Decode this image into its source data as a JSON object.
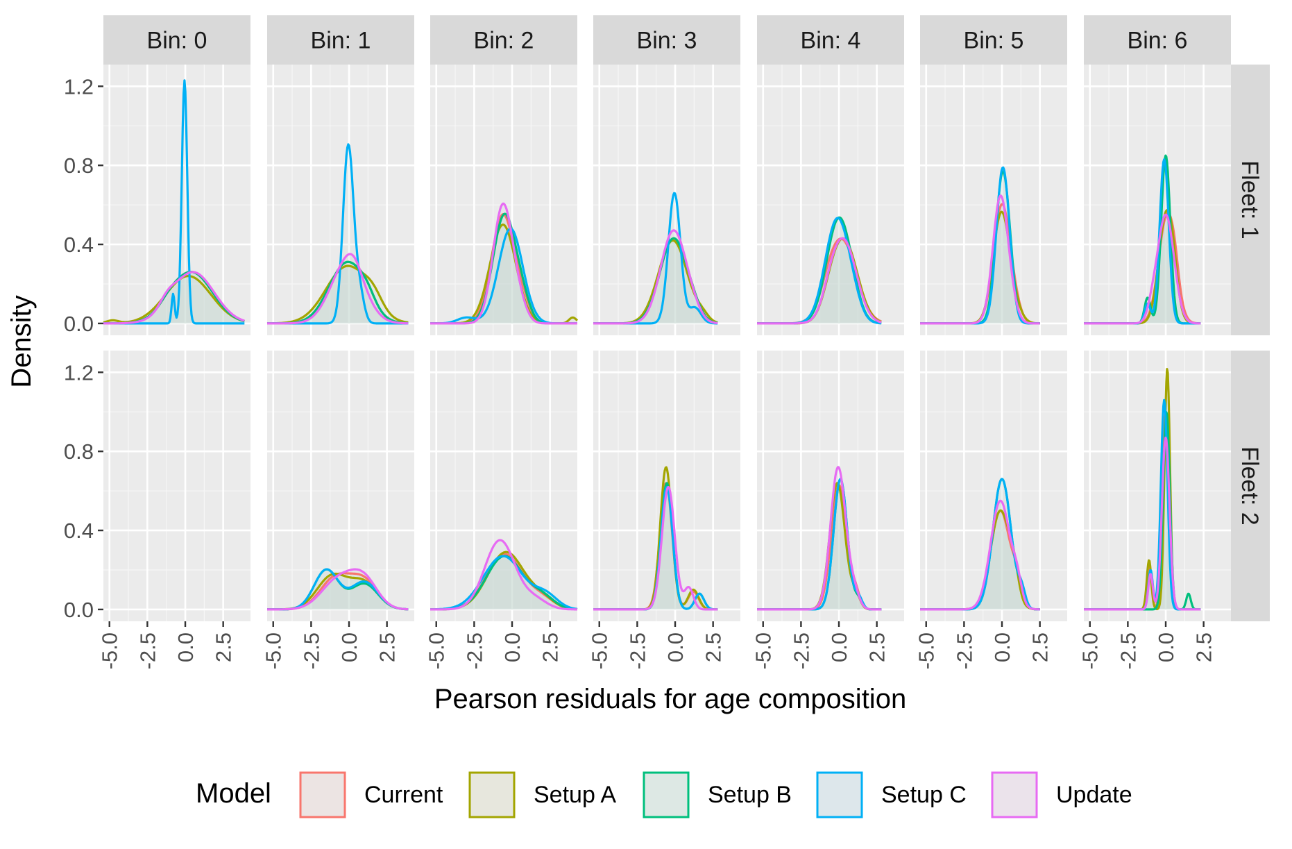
{
  "chart_data": {
    "type": "area",
    "title": "",
    "xlabel": "Pearson residuals for age composition",
    "ylabel": "Density",
    "x_ticks": [
      "-5.0",
      "-2.5",
      "0.0",
      "2.5"
    ],
    "x_tick_values": [
      -5,
      -2.5,
      0,
      2.5
    ],
    "y_ticks": [
      "0.0",
      "0.4",
      "0.8",
      "1.2"
    ],
    "y_tick_values": [
      0,
      0.4,
      0.8,
      1.2
    ],
    "xlim": [
      -5.4,
      4.3
    ],
    "ylim": [
      -0.06,
      1.31
    ],
    "grid": true,
    "legend_position": "bottom",
    "columns": [
      "Bin: 0",
      "Bin: 1",
      "Bin: 2",
      "Bin: 3",
      "Bin: 4",
      "Bin: 5",
      "Bin: 6"
    ],
    "rows": [
      "Fleet: 1",
      "Fleet: 2"
    ],
    "legend": {
      "title": "Model",
      "items": [
        {
          "label": "Current",
          "color": "#F8766D"
        },
        {
          "label": "Setup A",
          "color": "#A3A500"
        },
        {
          "label": "Setup B",
          "color": "#00BF7D"
        },
        {
          "label": "Setup C",
          "color": "#00B0F6"
        },
        {
          "label": "Update",
          "color": "#E76BF3"
        }
      ]
    },
    "series_order": [
      "Current",
      "Setup A",
      "Setup B",
      "Setup C",
      "Update"
    ],
    "panels": [
      {
        "col": 0,
        "row": 0,
        "empty": false,
        "range": [
          -5.4,
          3.9
        ],
        "curves": [
          {
            "c": 0.4,
            "s": 1.4,
            "a": 0.26,
            "c2": -1.1,
            "s2": 0.6,
            "a2": 0.02
          },
          {
            "c": 0.2,
            "s": 1.5,
            "a": 0.24,
            "c2": -4.8,
            "s2": 0.4,
            "a2": 0.015
          },
          {
            "c": 0.4,
            "s": 1.4,
            "a": 0.26,
            "c2": -1.1,
            "s2": 0.6,
            "a2": 0.02
          },
          {
            "c": -0.05,
            "s": 0.18,
            "a": 1.23,
            "c2": -0.8,
            "s2": 0.1,
            "a2": 0.15
          },
          {
            "c": 0.5,
            "s": 1.4,
            "a": 0.26,
            "c2": -1.2,
            "s2": 0.5,
            "a2": 0.04
          }
        ]
      },
      {
        "col": 1,
        "row": 0,
        "empty": false,
        "range": [
          -5.4,
          3.9
        ],
        "curves": [
          {
            "c": -0.1,
            "s": 1.2,
            "a": 0.31,
            "c2": 1.2,
            "s2": 0.5,
            "a2": 0.04
          },
          {
            "c": -0.1,
            "s": 1.4,
            "a": 0.29,
            "c2": 1.6,
            "s2": 0.6,
            "a2": 0.06
          },
          {
            "c": -0.1,
            "s": 1.2,
            "a": 0.31,
            "c2": 1.2,
            "s2": 0.5,
            "a2": 0.04
          },
          {
            "c": -0.05,
            "s": 0.35,
            "a": 0.9,
            "c2": 0.7,
            "s2": 0.3,
            "a2": 0.15
          },
          {
            "c": -0.1,
            "s": 1.1,
            "a": 0.31,
            "c2": 0.3,
            "s2": 0.5,
            "a2": 0.05
          }
        ]
      },
      {
        "col": 2,
        "row": 0,
        "empty": false,
        "range": [
          -5.4,
          4.3
        ],
        "curves": [
          {
            "c": -0.6,
            "s": 0.75,
            "a": 0.55,
            "c2": 0.7,
            "s2": 0.5,
            "a2": 0.08
          },
          {
            "c": -0.6,
            "s": 0.85,
            "a": 0.5,
            "c2": 4.0,
            "s2": 0.25,
            "a2": 0.03
          },
          {
            "c": -0.5,
            "s": 0.75,
            "a": 0.55,
            "c2": 0.7,
            "s2": 0.5,
            "a2": 0.08
          },
          {
            "c": -0.1,
            "s": 0.8,
            "a": 0.48,
            "c2": -3.0,
            "s2": 0.6,
            "a2": 0.03
          },
          {
            "c": -0.6,
            "s": 0.65,
            "a": 0.6,
            "c2": 0.5,
            "s2": 0.5,
            "a2": 0.07
          }
        ]
      },
      {
        "col": 3,
        "row": 0,
        "empty": false,
        "range": [
          -5.4,
          2.8
        ],
        "curves": [
          {
            "c": -0.1,
            "s": 0.9,
            "a": 0.43,
            "c2": 1.2,
            "s2": 0.5,
            "a2": 0.03
          },
          {
            "c": -0.15,
            "s": 0.95,
            "a": 0.42,
            "c2": 1.8,
            "s2": 0.4,
            "a2": 0.03
          },
          {
            "c": -0.1,
            "s": 0.9,
            "a": 0.43,
            "c2": 1.2,
            "s2": 0.5,
            "a2": 0.03
          },
          {
            "c": -0.05,
            "s": 0.4,
            "a": 0.66,
            "c2": 1.3,
            "s2": 0.4,
            "a2": 0.08
          },
          {
            "c": -0.1,
            "s": 0.85,
            "a": 0.47,
            "c2": 1.2,
            "s2": 0.5,
            "a2": 0.03
          }
        ]
      },
      {
        "col": 4,
        "row": 0,
        "empty": false,
        "range": [
          -5.4,
          2.8
        ],
        "curves": [
          {
            "c": 0.2,
            "s": 0.95,
            "a": 0.42,
            "c2": -0.7,
            "s2": 0.5,
            "a2": 0.04
          },
          {
            "c": 0.4,
            "s": 0.85,
            "a": 0.4,
            "c2": -0.5,
            "s2": 0.6,
            "a2": 0.08
          },
          {
            "c": 0.0,
            "s": 0.8,
            "a": 0.53,
            "c2": 0.9,
            "s2": 0.5,
            "a2": 0.03
          },
          {
            "c": -0.1,
            "s": 0.8,
            "a": 0.53,
            "c2": 1.0,
            "s2": 0.5,
            "a2": 0.04
          },
          {
            "c": 0.3,
            "s": 0.85,
            "a": 0.42,
            "c2": -0.6,
            "s2": 0.5,
            "a2": 0.05
          }
        ]
      },
      {
        "col": 5,
        "row": 0,
        "empty": false,
        "range": [
          -5.4,
          2.5
        ],
        "curves": [
          {
            "c": 0.0,
            "s": 0.55,
            "a": 0.6,
            "c2": 0.9,
            "s2": 0.4,
            "a2": 0.05
          },
          {
            "c": -0.05,
            "s": 0.55,
            "a": 0.55,
            "c2": 0.8,
            "s2": 0.5,
            "a2": 0.06
          },
          {
            "c": 0.05,
            "s": 0.45,
            "a": 0.76,
            "c2": 0.6,
            "s2": 0.3,
            "a2": 0.05
          },
          {
            "c": 0.05,
            "s": 0.42,
            "a": 0.78,
            "c2": 0.6,
            "s2": 0.3,
            "a2": 0.05
          },
          {
            "c": -0.1,
            "s": 0.5,
            "a": 0.64,
            "c2": 0.7,
            "s2": 0.4,
            "a2": 0.05
          }
        ]
      },
      {
        "col": 6,
        "row": 0,
        "empty": false,
        "range": [
          -5.4,
          2.3
        ],
        "curves": [
          {
            "c": 0.1,
            "s": 0.55,
            "a": 0.55,
            "c2": 0.6,
            "s2": 0.25,
            "a2": 0.06
          },
          {
            "c": 0.05,
            "s": 0.5,
            "a": 0.56,
            "c2": 0.5,
            "s2": 0.25,
            "a2": 0.06
          },
          {
            "c": 0.0,
            "s": 0.3,
            "a": 0.85,
            "c2": -1.2,
            "s2": 0.2,
            "a2": 0.13
          },
          {
            "c": -0.1,
            "s": 0.3,
            "a": 0.83,
            "c2": -1.2,
            "s2": 0.2,
            "a2": 0.1
          },
          {
            "c": 0.0,
            "s": 0.55,
            "a": 0.55,
            "c2": -0.9,
            "s2": 0.3,
            "a2": 0.05
          }
        ]
      },
      {
        "col": 0,
        "row": 1,
        "empty": true,
        "range": [
          -5.4,
          3.9
        ],
        "curves": []
      },
      {
        "col": 1,
        "row": 1,
        "empty": false,
        "range": [
          -5.4,
          3.9
        ],
        "curves": [
          {
            "c": -0.9,
            "s": 1.0,
            "a": 0.16,
            "c2": 1.0,
            "s2": 0.9,
            "a2": 0.14
          },
          {
            "c": -1.1,
            "s": 1.0,
            "a": 0.17,
            "c2": 1.0,
            "s2": 0.9,
            "a2": 0.13
          },
          {
            "c": -1.5,
            "s": 0.8,
            "a": 0.2,
            "c2": 1.0,
            "s2": 0.9,
            "a2": 0.13
          },
          {
            "c": -1.5,
            "s": 0.8,
            "a": 0.2,
            "c2": 1.0,
            "s2": 0.9,
            "a2": 0.14
          },
          {
            "c": -0.7,
            "s": 1.1,
            "a": 0.15,
            "c2": 1.0,
            "s2": 0.9,
            "a2": 0.14
          }
        ]
      },
      {
        "col": 2,
        "row": 1,
        "empty": false,
        "range": [
          -5.4,
          4.3
        ],
        "curves": [
          {
            "c": -0.5,
            "s": 1.2,
            "a": 0.28,
            "c2": 2.0,
            "s2": 0.8,
            "a2": 0.05
          },
          {
            "c": -0.4,
            "s": 1.2,
            "a": 0.29,
            "c2": 2.0,
            "s2": 0.8,
            "a2": 0.05
          },
          {
            "c": -0.5,
            "s": 1.2,
            "a": 0.27,
            "c2": 2.0,
            "s2": 0.8,
            "a2": 0.06
          },
          {
            "c": -0.6,
            "s": 1.3,
            "a": 0.27,
            "c2": 2.2,
            "s2": 0.8,
            "a2": 0.07
          },
          {
            "c": -0.8,
            "s": 1.0,
            "a": 0.35,
            "c2": 1.5,
            "s2": 0.8,
            "a2": 0.05
          }
        ]
      },
      {
        "col": 3,
        "row": 1,
        "empty": false,
        "range": [
          -5.4,
          2.8
        ],
        "curves": [
          {
            "c": -0.6,
            "s": 0.4,
            "a": 0.64,
            "c2": 1.2,
            "s2": 0.35,
            "a2": 0.09
          },
          {
            "c": -0.6,
            "s": 0.38,
            "a": 0.72,
            "c2": 1.2,
            "s2": 0.35,
            "a2": 0.1
          },
          {
            "c": -0.55,
            "s": 0.38,
            "a": 0.64,
            "c2": 1.6,
            "s2": 0.3,
            "a2": 0.08
          },
          {
            "c": -0.55,
            "s": 0.38,
            "a": 0.62,
            "c2": 1.6,
            "s2": 0.3,
            "a2": 0.08
          },
          {
            "c": -0.45,
            "s": 0.42,
            "a": 0.62,
            "c2": 0.9,
            "s2": 0.3,
            "a2": 0.11
          }
        ]
      },
      {
        "col": 4,
        "row": 1,
        "empty": false,
        "range": [
          -5.4,
          2.8
        ],
        "curves": [
          {
            "c": 0.0,
            "s": 0.5,
            "a": 0.63,
            "c2": 1.1,
            "s2": 0.3,
            "a2": 0.08
          },
          {
            "c": -0.1,
            "s": 0.5,
            "a": 0.64,
            "c2": 1.1,
            "s2": 0.3,
            "a2": 0.07
          },
          {
            "c": 0.1,
            "s": 0.45,
            "a": 0.66,
            "c2": 1.3,
            "s2": 0.25,
            "a2": 0.05
          },
          {
            "c": 0.1,
            "s": 0.45,
            "a": 0.66,
            "c2": 1.3,
            "s2": 0.25,
            "a2": 0.06
          },
          {
            "c": -0.05,
            "s": 0.5,
            "a": 0.72,
            "c2": 1.0,
            "s2": 0.35,
            "a2": 0.08
          }
        ]
      },
      {
        "col": 5,
        "row": 1,
        "empty": false,
        "range": [
          -5.4,
          2.5
        ],
        "curves": [
          {
            "c": -0.1,
            "s": 0.65,
            "a": 0.5,
            "c2": 1.0,
            "s2": 0.3,
            "a2": 0.1
          },
          {
            "c": -0.1,
            "s": 0.65,
            "a": 0.5,
            "c2": 0.8,
            "s2": 0.3,
            "a2": 0.1
          },
          {
            "c": 0.0,
            "s": 0.6,
            "a": 0.66,
            "c2": 1.3,
            "s2": 0.25,
            "a2": 0.07
          },
          {
            "c": 0.0,
            "s": 0.6,
            "a": 0.66,
            "c2": 1.3,
            "s2": 0.25,
            "a2": 0.08
          },
          {
            "c": -0.1,
            "s": 0.65,
            "a": 0.55,
            "c2": 1.0,
            "s2": 0.3,
            "a2": 0.1
          }
        ]
      },
      {
        "col": 6,
        "row": 1,
        "empty": false,
        "range": [
          -5.4,
          2.3
        ],
        "curves": [
          {
            "c": 0.0,
            "s": 0.22,
            "a": 1.0,
            "c2": -1.1,
            "s2": 0.15,
            "a2": 0.22
          },
          {
            "c": 0.1,
            "s": 0.18,
            "a": 1.22,
            "c2": -1.1,
            "s2": 0.15,
            "a2": 0.25
          },
          {
            "c": 0.05,
            "s": 0.22,
            "a": 1.0,
            "c2": 1.5,
            "s2": 0.15,
            "a2": 0.08
          },
          {
            "c": -0.1,
            "s": 0.22,
            "a": 1.06,
            "c2": -1.0,
            "s2": 0.15,
            "a2": 0.2
          },
          {
            "c": 0.0,
            "s": 0.25,
            "a": 0.87,
            "c2": -1.0,
            "s2": 0.15,
            "a2": 0.18
          }
        ]
      }
    ]
  }
}
